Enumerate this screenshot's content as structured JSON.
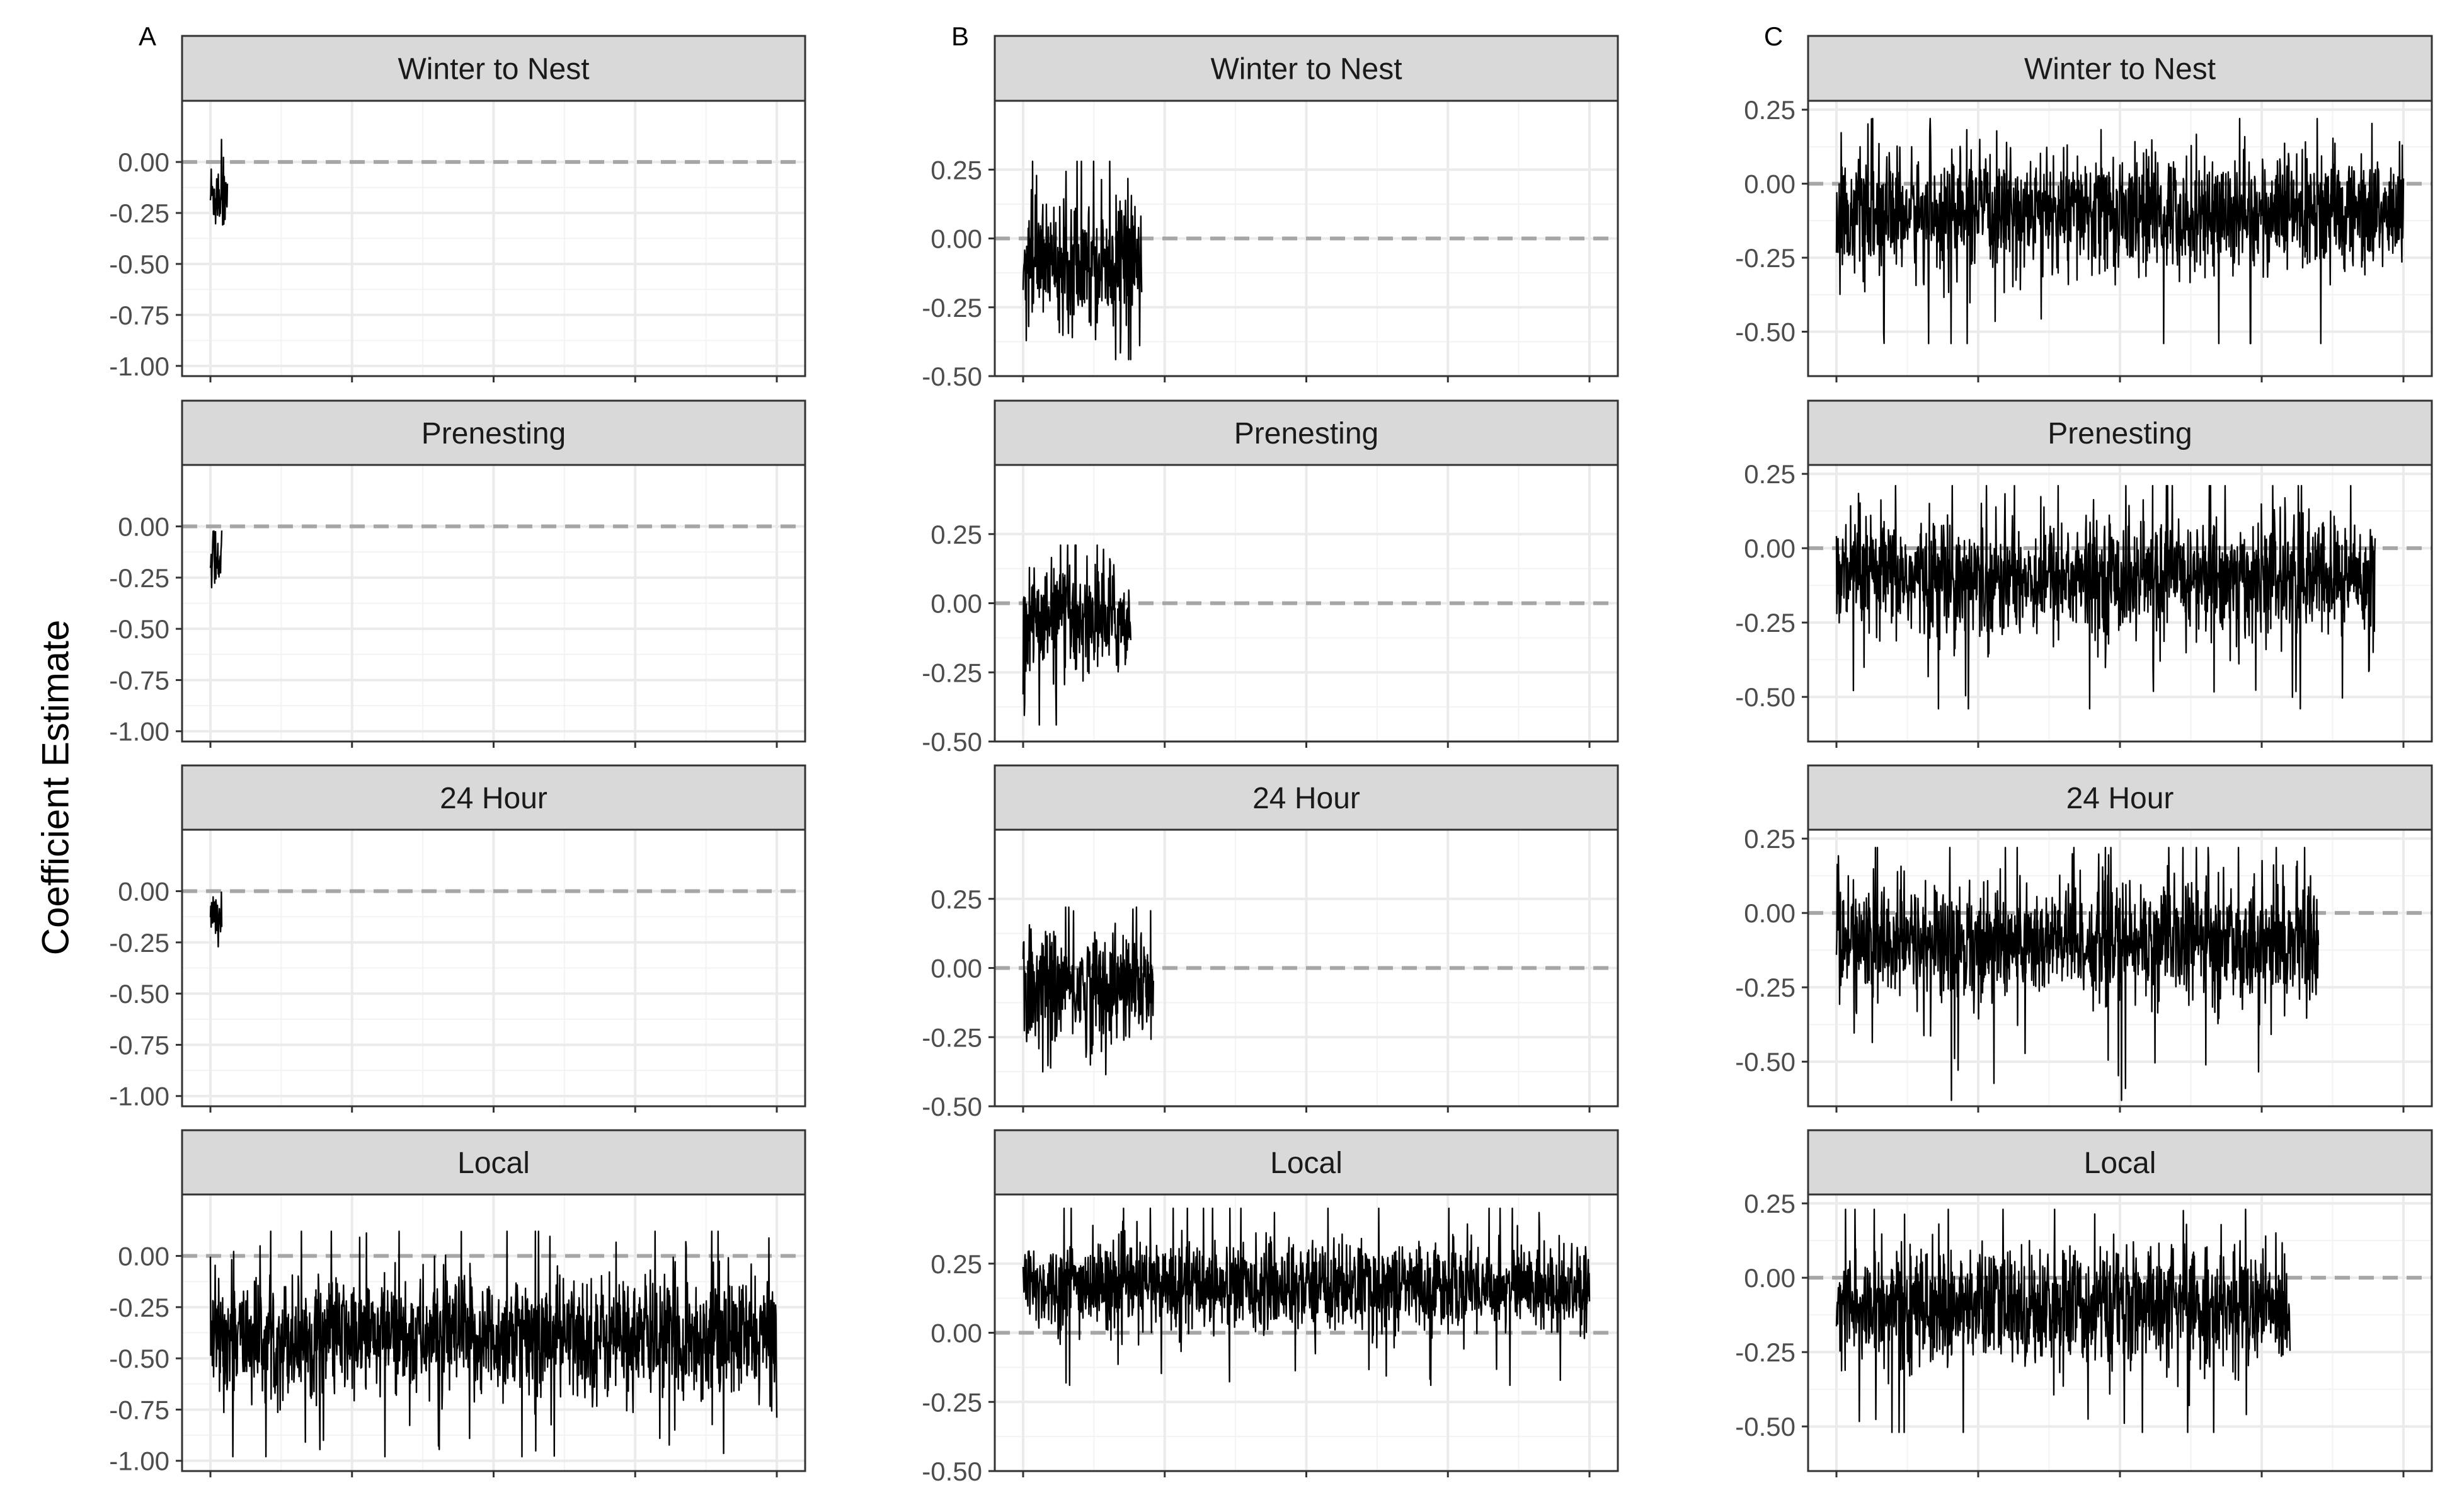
{
  "figure": {
    "ylabel": "Coefficient Estimate"
  },
  "colors": {
    "strip_fill": "#d9d9d9",
    "strip_border": "#333333",
    "panel_border": "#333333",
    "grid_major": "#ebebeb",
    "grid_minor": "#f3f3f3",
    "trace": "#000000",
    "zero_line": "#a6a6a6",
    "text": "#4d4d4d"
  },
  "chart_data": [
    {
      "type": "line",
      "column_label": "A",
      "grid": true,
      "x_tick_labels": [],
      "ylim": [
        -1.05,
        0.3
      ],
      "y_ticks": [
        0.0,
        -0.25,
        -0.5,
        -0.75,
        -1.0
      ],
      "y_tick_labels": [
        "0.00",
        "-0.25",
        "-0.50",
        "-0.75",
        "-1.00"
      ],
      "reference_line": 0,
      "panels": [
        {
          "title": "Winter to Nest",
          "trace_x_range": [
            0.0,
            0.03
          ],
          "trace_mean": -0.16,
          "trace_min": -0.46,
          "trace_max": 0.11,
          "trace_spread": 0.09
        },
        {
          "title": "Prenesting",
          "trace_x_range": [
            0.0,
            0.02
          ],
          "trace_mean": -0.14,
          "trace_min": -0.41,
          "trace_max": 0.12,
          "trace_spread": 0.08
        },
        {
          "title": "24 Hour",
          "trace_x_range": [
            0.0,
            0.02
          ],
          "trace_mean": -0.13,
          "trace_min": -0.36,
          "trace_max": 0.17,
          "trace_spread": 0.08
        },
        {
          "title": "Local",
          "trace_x_range": [
            0.0,
            1.0
          ],
          "trace_mean": -0.4,
          "trace_min": -0.98,
          "trace_max": 0.12,
          "trace_spread": 0.15
        }
      ]
    },
    {
      "type": "line",
      "column_label": "B",
      "grid": true,
      "x_tick_labels": [],
      "ylim": [
        -0.5,
        0.5
      ],
      "y_ticks": [
        0.25,
        0.0,
        -0.25,
        -0.5
      ],
      "y_tick_labels": [
        "0.25",
        "0.00",
        "-0.25",
        "-0.50"
      ],
      "reference_line": 0,
      "panels": [
        {
          "title": "Winter to Nest",
          "trace_x_range": [
            0.0,
            0.21
          ],
          "trace_mean": -0.07,
          "trace_min": -0.44,
          "trace_max": 0.28,
          "trace_spread": 0.11
        },
        {
          "title": "Prenesting",
          "trace_x_range": [
            0.0,
            0.19
          ],
          "trace_mean": -0.06,
          "trace_min": -0.44,
          "trace_max": 0.21,
          "trace_spread": 0.1
        },
        {
          "title": "24 Hour",
          "trace_x_range": [
            0.0,
            0.23
          ],
          "trace_mean": -0.07,
          "trace_min": -0.47,
          "trace_max": 0.22,
          "trace_spread": 0.11
        },
        {
          "title": "Local",
          "trace_x_range": [
            0.0,
            1.0
          ],
          "trace_mean": 0.17,
          "trace_min": -0.19,
          "trace_max": 0.45,
          "trace_spread": 0.08
        }
      ]
    },
    {
      "type": "line",
      "column_label": "C",
      "grid": true,
      "x_tick_labels": [],
      "ylim": [
        -0.65,
        0.28
      ],
      "y_ticks": [
        0.25,
        0.0,
        -0.25,
        -0.5
      ],
      "y_tick_labels": [
        "0.25",
        "0.00",
        "-0.25",
        "-0.50"
      ],
      "reference_line": 0,
      "panels": [
        {
          "title": "Winter to Nest",
          "trace_x_range": [
            0.0,
            1.0
          ],
          "trace_mean": -0.1,
          "trace_min": -0.54,
          "trace_max": 0.22,
          "trace_spread": 0.1
        },
        {
          "title": "Prenesting",
          "trace_x_range": [
            0.0,
            0.95
          ],
          "trace_mean": -0.1,
          "trace_min": -0.54,
          "trace_max": 0.21,
          "trace_spread": 0.1
        },
        {
          "title": "24 Hour",
          "trace_x_range": [
            0.0,
            0.85
          ],
          "trace_mean": -0.1,
          "trace_min": -0.63,
          "trace_max": 0.22,
          "trace_spread": 0.1
        },
        {
          "title": "Local",
          "trace_x_range": [
            0.0,
            0.8
          ],
          "trace_mean": -0.1,
          "trace_min": -0.52,
          "trace_max": 0.23,
          "trace_spread": 0.1
        }
      ]
    }
  ]
}
